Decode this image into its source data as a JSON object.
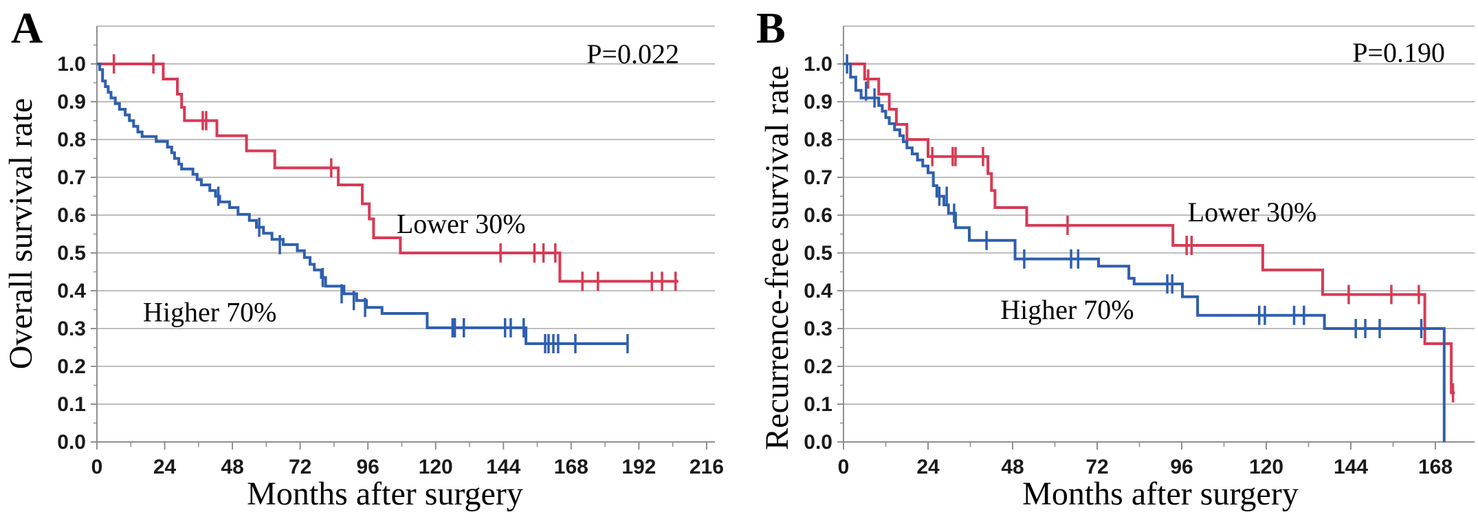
{
  "figure": {
    "description": "Kaplan-Meier survival curves, two panels",
    "x_axis_title": "Months after surgery"
  },
  "chart_data": [
    {
      "type": "line",
      "subtype": "kaplan_meier_step",
      "panel": "A",
      "title_letter": "A",
      "p_value_label": "P=0.022",
      "xlabel": "Months after surgery",
      "ylabel": "Overall survival rate",
      "xlim": [
        0,
        219
      ],
      "ylim": [
        0.0,
        1.1
      ],
      "grid": true,
      "x_ticks": [
        0,
        24,
        48,
        72,
        96,
        120,
        144,
        168,
        192,
        216
      ],
      "x_minor_step": 12,
      "y_tick_labels": [
        "0.0",
        "0.1",
        "0.2",
        "0.3",
        "0.4",
        "0.5",
        "0.6",
        "0.7",
        "0.8",
        "0.9",
        "1.0"
      ],
      "series": [
        {
          "name": "Lower 30%",
          "color": "#d73a55",
          "label": {
            "text": "Lower 30%",
            "month": 129,
            "value": 0.578
          },
          "steps": [
            [
              0,
              1.0
            ],
            [
              23.5,
              0.96
            ],
            [
              28.5,
              0.92
            ],
            [
              30,
              0.885
            ],
            [
              31,
              0.85
            ],
            [
              42.5,
              0.81
            ],
            [
              53,
              0.77
            ],
            [
              63,
              0.725
            ],
            [
              85.5,
              0.68
            ],
            [
              94,
              0.63
            ],
            [
              96.5,
              0.59
            ],
            [
              98,
              0.54
            ],
            [
              107.5,
              0.5
            ],
            [
              164,
              0.425
            ]
          ],
          "end_month": 206,
          "censors": [
            [
              6,
              1.0
            ],
            [
              20,
              1.0
            ],
            [
              37.5,
              0.85
            ],
            [
              38.7,
              0.85
            ],
            [
              83,
              0.725
            ],
            [
              143,
              0.5
            ],
            [
              155,
              0.5
            ],
            [
              158.2,
              0.5
            ],
            [
              162.4,
              0.5
            ],
            [
              172,
              0.425
            ],
            [
              177.5,
              0.425
            ],
            [
              196.6,
              0.425
            ],
            [
              200.2,
              0.425
            ],
            [
              205,
              0.425
            ]
          ]
        },
        {
          "name": "Higher 70%",
          "color": "#2f5fae",
          "label": {
            "text": "Higher 70%",
            "month": 40,
            "value": 0.345
          },
          "steps": [
            [
              0,
              1.0
            ],
            [
              1,
              0.985
            ],
            [
              2,
              0.955
            ],
            [
              3,
              0.94
            ],
            [
              4,
              0.925
            ],
            [
              5,
              0.91
            ],
            [
              6.5,
              0.895
            ],
            [
              8,
              0.88
            ],
            [
              10,
              0.865
            ],
            [
              11.5,
              0.85
            ],
            [
              13,
              0.835
            ],
            [
              14.5,
              0.82
            ],
            [
              16,
              0.808
            ],
            [
              21,
              0.795
            ],
            [
              25,
              0.78
            ],
            [
              26.5,
              0.765
            ],
            [
              27.5,
              0.75
            ],
            [
              29,
              0.735
            ],
            [
              30,
              0.722
            ],
            [
              34,
              0.708
            ],
            [
              35.5,
              0.694
            ],
            [
              37,
              0.68
            ],
            [
              40,
              0.665
            ],
            [
              42,
              0.65
            ],
            [
              43.5,
              0.635
            ],
            [
              47,
              0.62
            ],
            [
              50,
              0.602
            ],
            [
              54,
              0.586
            ],
            [
              56.5,
              0.568
            ],
            [
              59,
              0.552
            ],
            [
              62,
              0.536
            ],
            [
              66,
              0.522
            ],
            [
              71,
              0.506
            ],
            [
              73.5,
              0.488
            ],
            [
              75.5,
              0.47
            ],
            [
              77,
              0.455
            ],
            [
              79.5,
              0.435
            ],
            [
              81,
              0.412
            ],
            [
              87.5,
              0.392
            ],
            [
              92,
              0.374
            ],
            [
              95.5,
              0.356
            ],
            [
              101,
              0.34
            ],
            [
              117,
              0.302
            ],
            [
              152,
              0.26
            ]
          ],
          "end_month": 188,
          "censors": [
            [
              43,
              0.65
            ],
            [
              57.5,
              0.568
            ],
            [
              64.8,
              0.522
            ],
            [
              80,
              0.435
            ],
            [
              86.7,
              0.392
            ],
            [
              91,
              0.374
            ],
            [
              95,
              0.356
            ],
            [
              126,
              0.302
            ],
            [
              126.8,
              0.302
            ],
            [
              130,
              0.302
            ],
            [
              144.6,
              0.302
            ],
            [
              146.6,
              0.302
            ],
            [
              151.2,
              0.302
            ],
            [
              158.8,
              0.26
            ],
            [
              160,
              0.26
            ],
            [
              161.7,
              0.26
            ],
            [
              163.4,
              0.26
            ],
            [
              169.5,
              0.26
            ],
            [
              188,
              0.26
            ]
          ]
        }
      ]
    },
    {
      "type": "line",
      "subtype": "kaplan_meier_step",
      "panel": "B",
      "title_letter": "B",
      "p_value_label": "P=0.190",
      "xlabel": "Months after surgery",
      "ylabel": "Recurrence-free survival rate",
      "xlim": [
        0,
        179
      ],
      "ylim": [
        0.0,
        1.1
      ],
      "grid": true,
      "x_ticks": [
        0,
        24,
        48,
        72,
        96,
        120,
        144,
        168
      ],
      "x_minor_step": 12,
      "y_tick_labels": [
        "0.0",
        "0.1",
        "0.2",
        "0.3",
        "0.4",
        "0.5",
        "0.6",
        "0.7",
        "0.8",
        "0.9",
        "1.0"
      ],
      "series": [
        {
          "name": "Lower 30%",
          "color": "#d73a55",
          "label": {
            "text": "Lower 30%",
            "month": 116,
            "value": 0.609
          },
          "steps": [
            [
              0,
              1.0
            ],
            [
              6,
              0.96
            ],
            [
              10,
              0.92
            ],
            [
              13,
              0.88
            ],
            [
              15,
              0.84
            ],
            [
              18,
              0.8
            ],
            [
              24,
              0.755
            ],
            [
              41,
              0.71
            ],
            [
              42,
              0.665
            ],
            [
              43,
              0.62
            ],
            [
              52,
              0.573
            ],
            [
              93.5,
              0.52
            ],
            [
              119,
              0.455
            ],
            [
              136,
              0.39
            ],
            [
              165,
              0.26
            ],
            [
              172.5,
              0.13
            ]
          ],
          "end_month": 173.5,
          "censors": [
            [
              7,
              0.96
            ],
            [
              25.2,
              0.755
            ],
            [
              31,
              0.755
            ],
            [
              31.8,
              0.755
            ],
            [
              39.6,
              0.755
            ],
            [
              63.6,
              0.573
            ],
            [
              97.4,
              0.52
            ],
            [
              98.8,
              0.52
            ],
            [
              143.4,
              0.39
            ],
            [
              155.5,
              0.39
            ],
            [
              163.3,
              0.39
            ],
            [
              173,
              0.13
            ]
          ]
        },
        {
          "name": "Higher 70%",
          "color": "#2f5fae",
          "label": {
            "text": "Higher 70%",
            "month": 63.5,
            "value": 0.351
          },
          "steps": [
            [
              0,
              1.0
            ],
            [
              2,
              0.965
            ],
            [
              3.5,
              0.93
            ],
            [
              5,
              0.91
            ],
            [
              10,
              0.89
            ],
            [
              11,
              0.875
            ],
            [
              12,
              0.858
            ],
            [
              13,
              0.842
            ],
            [
              14.5,
              0.826
            ],
            [
              16,
              0.81
            ],
            [
              17,
              0.794
            ],
            [
              18,
              0.778
            ],
            [
              19.5,
              0.762
            ],
            [
              21,
              0.746
            ],
            [
              22.5,
              0.73
            ],
            [
              24,
              0.712
            ],
            [
              25.5,
              0.678
            ],
            [
              26.5,
              0.65
            ],
            [
              28.5,
              0.627
            ],
            [
              29.8,
              0.605
            ],
            [
              31.8,
              0.567
            ],
            [
              35.7,
              0.533
            ],
            [
              48.7,
              0.484
            ],
            [
              72.4,
              0.465
            ],
            [
              81,
              0.433
            ],
            [
              82.5,
              0.418
            ],
            [
              96.2,
              0.384
            ],
            [
              100.5,
              0.335
            ],
            [
              136.5,
              0.3
            ],
            [
              170.5,
              0.0
            ]
          ],
          "end_month": 170.5,
          "censors": [
            [
              1,
              1.0
            ],
            [
              6.4,
              0.928
            ],
            [
              8.8,
              0.91
            ],
            [
              27.2,
              0.65
            ],
            [
              29.3,
              0.65
            ],
            [
              31.4,
              0.605
            ],
            [
              40.6,
              0.533
            ],
            [
              51.3,
              0.484
            ],
            [
              64.6,
              0.484
            ],
            [
              66.6,
              0.484
            ],
            [
              91.9,
              0.418
            ],
            [
              93.3,
              0.418
            ],
            [
              118,
              0.335
            ],
            [
              119.6,
              0.335
            ],
            [
              127.9,
              0.335
            ],
            [
              130.7,
              0.335
            ],
            [
              145.4,
              0.3
            ],
            [
              148.1,
              0.3
            ],
            [
              152.2,
              0.3
            ],
            [
              164,
              0.3
            ]
          ]
        }
      ]
    }
  ]
}
